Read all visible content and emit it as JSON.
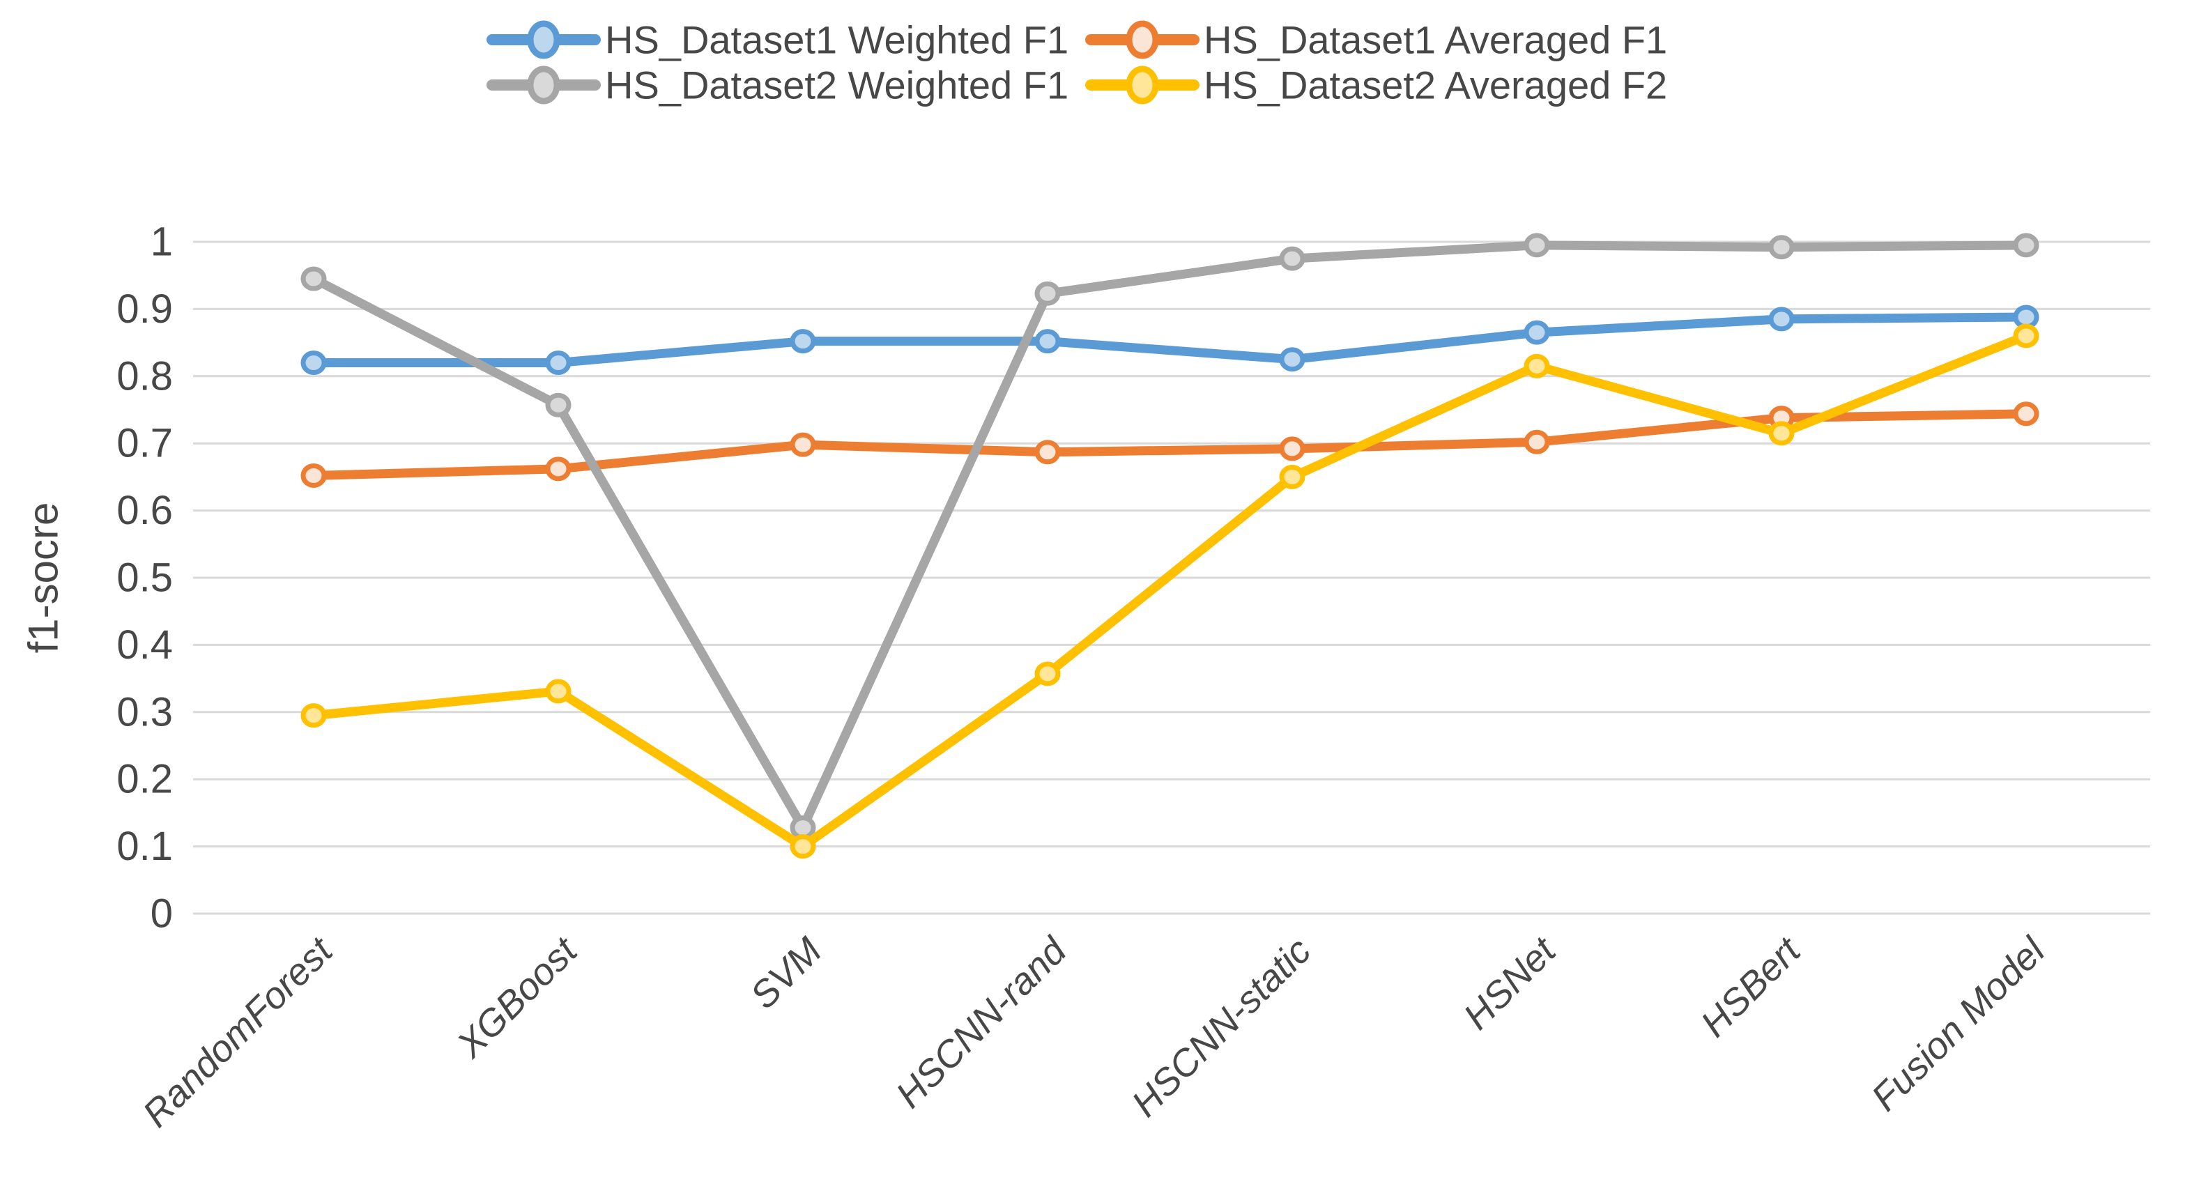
{
  "chart_data": {
    "type": "line",
    "title": "",
    "xlabel": "",
    "ylabel": "f1-socre",
    "ylim": [
      0,
      1
    ],
    "ytick_step": 0.1,
    "ytick_labels": [
      "0",
      "0.1",
      "0.2",
      "0.3",
      "0.4",
      "0.5",
      "0.6",
      "0.7",
      "0.8",
      "0.9",
      "1"
    ],
    "grid": "horizontal",
    "gridline_color": "#D9D9D9",
    "legend_position": "top",
    "legend_rows": [
      [
        0,
        1
      ],
      [
        2,
        3
      ]
    ],
    "categories": [
      "RandomForest",
      "XGBoost",
      "SVM",
      "HSCNN-rand",
      "HSCNN-static",
      "HSNet",
      "HSBert",
      "Fusion Model"
    ],
    "series": [
      {
        "name": "HS_Dataset1 Weighted F1",
        "color": "#5B9BD5",
        "marker_fill": "#BDD7EE",
        "values": [
          0.82,
          0.82,
          0.852,
          0.852,
          0.825,
          0.865,
          0.885,
          0.888
        ]
      },
      {
        "name": "HS_Dataset1 Averaged F1",
        "color": "#ED7D31",
        "marker_fill": "#FBE5D6",
        "values": [
          0.652,
          0.662,
          0.698,
          0.687,
          0.692,
          0.702,
          0.738,
          0.744
        ]
      },
      {
        "name": "HS_Dataset2 Weighted F1",
        "color": "#A6A6A6",
        "marker_fill": "#D9D9D9",
        "values": [
          0.945,
          0.757,
          0.128,
          0.923,
          0.975,
          0.995,
          0.992,
          0.995
        ]
      },
      {
        "name": "HS_Dataset2 Averaged F2",
        "color": "#FFC000",
        "marker_fill": "#FFE699",
        "values": [
          0.295,
          0.331,
          0.1,
          0.357,
          0.65,
          0.815,
          0.715,
          0.86
        ]
      }
    ],
    "text_color": "#474747",
    "background_color": "#FFFFFF"
  }
}
